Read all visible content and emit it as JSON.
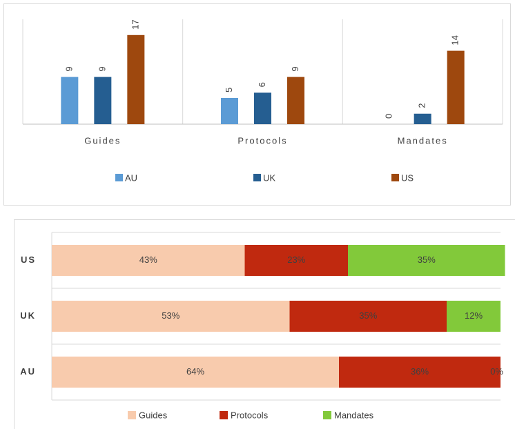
{
  "chart_data": [
    {
      "type": "bar",
      "categories": [
        "Guides",
        "Protocols",
        "Mandates"
      ],
      "series": [
        {
          "name": "AU",
          "color": "#5b9bd5",
          "values": [
            9,
            5,
            0
          ]
        },
        {
          "name": "UK",
          "color": "#255e91",
          "values": [
            9,
            6,
            2
          ]
        },
        {
          "name": "US",
          "color": "#9e480e",
          "values": [
            17,
            9,
            14
          ]
        }
      ],
      "ylim": [
        0,
        20
      ],
      "legend": "bottom"
    },
    {
      "type": "stacked-bar",
      "categories": [
        "US",
        "UK",
        "AU"
      ],
      "series": [
        {
          "name": "Guides",
          "color": "#f8cbad",
          "values": [
            43,
            53,
            64
          ],
          "value_labels": [
            "43%",
            "53%",
            "64%"
          ]
        },
        {
          "name": "Protocols",
          "color": "#c0290f",
          "values": [
            23,
            35,
            36
          ],
          "value_labels": [
            "23%",
            "35%",
            "36%"
          ]
        },
        {
          "name": "Mandates",
          "color": "#82c93a",
          "values": [
            35,
            12,
            0
          ],
          "value_labels": [
            "35%",
            "12%",
            "0%"
          ]
        }
      ],
      "xlim": [
        0,
        100
      ],
      "legend": "bottom"
    }
  ]
}
